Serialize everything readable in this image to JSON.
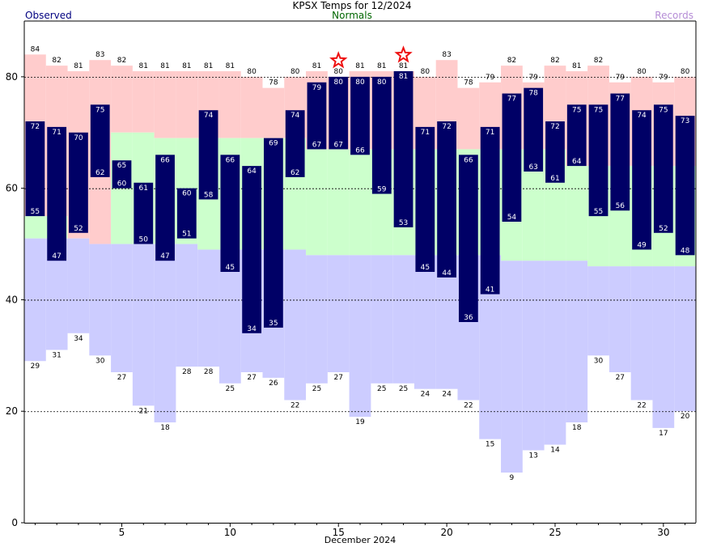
{
  "chart_data": {
    "type": "bar",
    "title": "KPSX Temps for 12/2024",
    "legend": [
      "Observed",
      "Normals",
      "Records"
    ],
    "xlabel": "December 2024",
    "ylabel": "",
    "ylim": [
      0,
      90
    ],
    "xlim": [
      0.5,
      31.5
    ],
    "y_ticks": [
      0,
      20,
      40,
      60,
      80
    ],
    "x_ticks": [
      5,
      10,
      15,
      20,
      25,
      30
    ],
    "grid": "dashed horizontal at 20, 40, 60, 80",
    "days": [
      1,
      2,
      3,
      4,
      5,
      6,
      7,
      8,
      9,
      10,
      11,
      12,
      13,
      14,
      15,
      16,
      17,
      18,
      19,
      20,
      21,
      22,
      23,
      24,
      25,
      26,
      27,
      28,
      29,
      30,
      31
    ],
    "observed_high": [
      72,
      71,
      70,
      75,
      65,
      61,
      66,
      60,
      74,
      66,
      64,
      69,
      74,
      79,
      80,
      80,
      80,
      81,
      71,
      72,
      66,
      71,
      77,
      78,
      72,
      75,
      75,
      77,
      74,
      75,
      73
    ],
    "observed_low": [
      55,
      47,
      52,
      62,
      60,
      50,
      47,
      51,
      58,
      45,
      34,
      35,
      62,
      67,
      67,
      66,
      59,
      53,
      45,
      44,
      36,
      41,
      54,
      63,
      61,
      64,
      55,
      56,
      49,
      52,
      48
    ],
    "normal_high": [
      55,
      55,
      51,
      50,
      70,
      70,
      69,
      69,
      69,
      69,
      69,
      69,
      69,
      67,
      67,
      67,
      67,
      67,
      67,
      67,
      67,
      67,
      67,
      67,
      67,
      64,
      64,
      64,
      64,
      64,
      64
    ],
    "normal_low": [
      51,
      51,
      51,
      50,
      50,
      50,
      50,
      50,
      49,
      49,
      49,
      49,
      49,
      48,
      48,
      48,
      48,
      48,
      48,
      48,
      48,
      48,
      47,
      47,
      47,
      47,
      46,
      46,
      46,
      46,
      46
    ],
    "record_high": [
      84,
      82,
      81,
      83,
      82,
      81,
      81,
      81,
      81,
      81,
      80,
      78,
      80,
      81,
      80,
      81,
      81,
      81,
      80,
      83,
      78,
      79,
      82,
      79,
      82,
      81,
      82,
      79,
      80,
      79,
      80
    ],
    "record_low": [
      29,
      31,
      34,
      30,
      27,
      21,
      18,
      28,
      28,
      25,
      27,
      26,
      22,
      25,
      27,
      19,
      25,
      25,
      24,
      24,
      22,
      15,
      9,
      13,
      14,
      18,
      30,
      27,
      22,
      17,
      20
    ],
    "record_set_days": [
      15,
      18
    ],
    "colors": {
      "observed": "#000066",
      "normal_band": "#ccffcc",
      "record_high_band": "#ffcccc",
      "record_low_band": "#ccccff",
      "star": "#ee1111",
      "legend_observed": "#000080",
      "legend_normals": "#006600",
      "legend_records": "#b58cd6"
    }
  }
}
